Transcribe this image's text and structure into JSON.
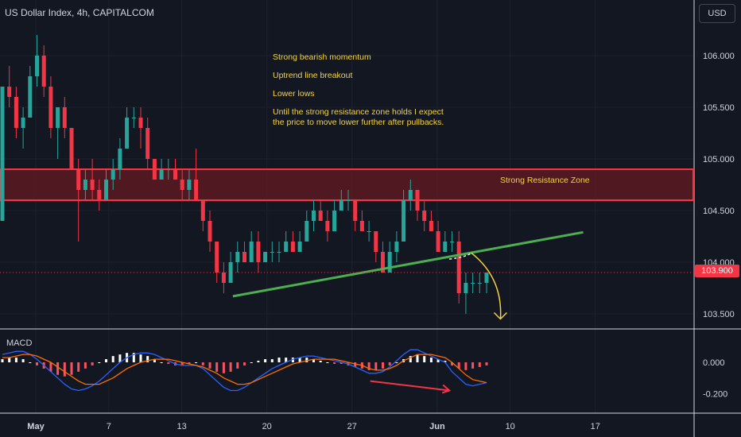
{
  "header": {
    "symbol_title": "US Dollar Index, 4h, CAPITALCOM",
    "currency_button": "USD"
  },
  "annotations": {
    "notes": [
      "Strong bearish momentum",
      "Uptrend line breakout",
      "Lower lows",
      "Until the strong resistance zone holds I expect",
      "the price to move lower further after pullbacks."
    ],
    "resistance_zone_label": "Strong Resistance Zone"
  },
  "indicator": {
    "name": "MACD"
  },
  "colors": {
    "background": "#131722",
    "up": "#26a69a",
    "down": "#f23645",
    "zone_fill": "#5c1a22",
    "zone_border": "#f23645",
    "trendline": "#4caf50",
    "annotation_text": "#f5d33f",
    "macd_line": "#2962ff",
    "signal_line": "#ff6d00",
    "hist_pos": "#ffffff",
    "hist_neg": "#f7525f"
  },
  "chart_data": {
    "type": "candlestick",
    "title": "US Dollar Index, 4h, CAPITALCOM",
    "price_axis": {
      "ticks": [
        106.0,
        105.5,
        105.0,
        104.5,
        104.0,
        103.5
      ],
      "labels": [
        "106.000",
        "105.500",
        "105.000",
        "104.500",
        "104.000",
        "103.500"
      ],
      "range": [
        103.3,
        106.3
      ]
    },
    "time_axis": {
      "labels": [
        "May",
        "7",
        "13",
        "20",
        "27",
        "Jun",
        "10",
        "17"
      ],
      "positions_day": [
        1,
        7,
        13,
        20,
        27,
        34,
        40,
        47
      ]
    },
    "last_price": 103.9,
    "last_price_label": "103.900",
    "resistance_zone": [
      104.6,
      104.9
    ],
    "trendline": {
      "from": [
        17.2,
        103.67
      ],
      "to": [
        46.0,
        104.29
      ]
    },
    "projection": {
      "from": [
        35.0,
        104.03
      ],
      "via": [
        37.0,
        103.84
      ],
      "to": [
        36.8,
        104.09
      ],
      "target": [
        39.2,
        103.45
      ]
    },
    "candles": [
      [
        104.4,
        105.7,
        104.4,
        105.7
      ],
      [
        105.7,
        105.9,
        105.5,
        105.6
      ],
      [
        105.6,
        105.7,
        105.2,
        105.3
      ],
      [
        105.3,
        105.5,
        105.1,
        105.4
      ],
      [
        105.4,
        105.9,
        105.4,
        105.8
      ],
      [
        105.8,
        106.2,
        105.7,
        106.0
      ],
      [
        106.0,
        106.1,
        105.6,
        105.7
      ],
      [
        105.7,
        105.8,
        105.2,
        105.3
      ],
      [
        105.3,
        105.5,
        105.0,
        105.5
      ],
      [
        105.5,
        105.6,
        105.2,
        105.3
      ],
      [
        105.3,
        105.3,
        104.9,
        104.9
      ],
      [
        104.9,
        105.0,
        104.2,
        104.7
      ],
      [
        104.7,
        104.9,
        104.6,
        104.8
      ],
      [
        104.8,
        105.0,
        104.6,
        104.7
      ],
      [
        104.7,
        104.8,
        104.5,
        104.6
      ],
      [
        104.6,
        104.9,
        104.6,
        104.8
      ],
      [
        104.8,
        105.0,
        104.7,
        104.9
      ],
      [
        104.9,
        105.2,
        104.8,
        105.1
      ],
      [
        105.1,
        105.5,
        105.1,
        105.4
      ],
      [
        105.4,
        105.5,
        105.3,
        105.4
      ],
      [
        105.4,
        105.5,
        105.1,
        105.3
      ],
      [
        105.3,
        105.4,
        104.9,
        105.0
      ],
      [
        105.0,
        105.0,
        104.8,
        104.8
      ],
      [
        104.8,
        105.0,
        104.8,
        104.9
      ],
      [
        104.9,
        105.0,
        104.8,
        104.9
      ],
      [
        104.9,
        105.0,
        104.8,
        104.8
      ],
      [
        104.8,
        104.9,
        104.6,
        104.7
      ],
      [
        104.7,
        104.9,
        104.6,
        104.8
      ],
      [
        104.8,
        105.1,
        104.6,
        104.6
      ],
      [
        104.6,
        104.6,
        104.3,
        104.4
      ],
      [
        104.4,
        104.5,
        104.1,
        104.2
      ],
      [
        104.2,
        104.2,
        103.8,
        103.9
      ],
      [
        103.9,
        104.0,
        103.7,
        103.8
      ],
      [
        103.8,
        104.1,
        103.8,
        104.0
      ],
      [
        104.0,
        104.2,
        103.9,
        104.1
      ],
      [
        104.1,
        104.2,
        104.0,
        104.0
      ],
      [
        104.0,
        104.3,
        104.0,
        104.2
      ],
      [
        104.2,
        104.3,
        103.9,
        104.0
      ],
      [
        104.0,
        104.1,
        104.0,
        104.1
      ],
      [
        104.1,
        104.2,
        104.0,
        104.1
      ],
      [
        104.1,
        104.2,
        104.0,
        104.1
      ],
      [
        104.1,
        104.3,
        104.1,
        104.2
      ],
      [
        104.2,
        104.3,
        104.1,
        104.1
      ],
      [
        104.1,
        104.3,
        104.1,
        104.2
      ],
      [
        104.2,
        104.5,
        104.2,
        104.4
      ],
      [
        104.4,
        104.6,
        104.3,
        104.5
      ],
      [
        104.5,
        104.6,
        104.4,
        104.4
      ],
      [
        104.4,
        104.5,
        104.2,
        104.3
      ],
      [
        104.3,
        104.6,
        104.3,
        104.5
      ],
      [
        104.5,
        104.7,
        104.5,
        104.6
      ],
      [
        104.6,
        104.7,
        104.5,
        104.6
      ],
      [
        104.6,
        104.6,
        104.3,
        104.4
      ],
      [
        104.4,
        104.5,
        104.3,
        104.3
      ],
      [
        104.3,
        104.4,
        104.2,
        104.3
      ],
      [
        104.3,
        104.3,
        104.0,
        104.1
      ],
      [
        104.1,
        104.2,
        103.9,
        103.9
      ],
      [
        103.9,
        104.2,
        103.9,
        104.1
      ],
      [
        104.1,
        104.3,
        104.0,
        104.2
      ],
      [
        104.2,
        104.7,
        104.2,
        104.6
      ],
      [
        104.6,
        104.8,
        104.5,
        104.7
      ],
      [
        104.7,
        104.7,
        104.4,
        104.5
      ],
      [
        104.5,
        104.6,
        104.3,
        104.4
      ],
      [
        104.4,
        104.5,
        104.3,
        104.3
      ],
      [
        104.3,
        104.4,
        104.1,
        104.1
      ],
      [
        104.1,
        104.3,
        104.1,
        104.2
      ],
      [
        104.2,
        104.3,
        104.1,
        104.2
      ],
      [
        104.2,
        104.3,
        103.6,
        103.7
      ],
      [
        103.7,
        103.9,
        103.5,
        103.8
      ],
      [
        103.8,
        103.9,
        103.7,
        103.8
      ],
      [
        103.8,
        103.9,
        103.7,
        103.8
      ],
      [
        103.8,
        103.9,
        103.7,
        103.9
      ]
    ],
    "macd": {
      "axis_ticks": [
        0.0,
        -0.2
      ],
      "axis_labels": [
        "0.000",
        "-0.200"
      ],
      "range": [
        -0.25,
        0.12
      ],
      "histogram": [
        0.02,
        0.03,
        0.03,
        0.02,
        0.0,
        -0.02,
        -0.04,
        -0.06,
        -0.08,
        -0.09,
        -0.08,
        -0.06,
        -0.04,
        -0.02,
        0.0,
        0.02,
        0.04,
        0.05,
        0.06,
        0.06,
        0.05,
        0.04,
        0.02,
        0.0,
        -0.01,
        -0.02,
        -0.02,
        -0.01,
        0.0,
        -0.02,
        -0.04,
        -0.06,
        -0.07,
        -0.06,
        -0.04,
        -0.02,
        0.0,
        0.01,
        0.02,
        0.02,
        0.03,
        0.03,
        0.03,
        0.03,
        0.03,
        0.02,
        0.01,
        0.0,
        -0.01,
        -0.01,
        -0.02,
        -0.03,
        -0.04,
        -0.05,
        -0.05,
        -0.04,
        -0.02,
        0.0,
        0.02,
        0.04,
        0.05,
        0.04,
        0.03,
        0.02,
        0.01,
        -0.02,
        -0.04,
        -0.05,
        -0.04,
        -0.03,
        -0.02
      ],
      "macd_line": [
        0.05,
        0.06,
        0.07,
        0.07,
        0.05,
        0.02,
        -0.02,
        -0.06,
        -0.1,
        -0.14,
        -0.17,
        -0.18,
        -0.17,
        -0.15,
        -0.12,
        -0.08,
        -0.04,
        0.0,
        0.03,
        0.05,
        0.06,
        0.06,
        0.05,
        0.03,
        0.01,
        -0.01,
        -0.02,
        -0.02,
        -0.02,
        -0.04,
        -0.08,
        -0.12,
        -0.16,
        -0.18,
        -0.18,
        -0.16,
        -0.13,
        -0.1,
        -0.07,
        -0.04,
        -0.02,
        0.0,
        0.02,
        0.03,
        0.04,
        0.04,
        0.03,
        0.02,
        0.01,
        0.0,
        -0.01,
        -0.03,
        -0.05,
        -0.07,
        -0.07,
        -0.06,
        -0.03,
        0.01,
        0.05,
        0.08,
        0.08,
        0.06,
        0.04,
        0.02,
        0.0,
        -0.06,
        -0.1,
        -0.14,
        -0.15,
        -0.14,
        -0.13
      ],
      "signal_line": [
        0.03,
        0.03,
        0.04,
        0.05,
        0.05,
        0.04,
        0.02,
        0.0,
        -0.03,
        -0.06,
        -0.09,
        -0.12,
        -0.14,
        -0.14,
        -0.14,
        -0.12,
        -0.1,
        -0.07,
        -0.04,
        -0.02,
        0.0,
        0.01,
        0.02,
        0.02,
        0.02,
        0.01,
        0.0,
        -0.01,
        -0.02,
        -0.03,
        -0.05,
        -0.07,
        -0.1,
        -0.12,
        -0.14,
        -0.14,
        -0.13,
        -0.11,
        -0.09,
        -0.07,
        -0.05,
        -0.03,
        -0.01,
        0.0,
        0.01,
        0.02,
        0.02,
        0.02,
        0.02,
        0.01,
        0.0,
        -0.01,
        -0.02,
        -0.04,
        -0.05,
        -0.05,
        -0.04,
        -0.02,
        0.01,
        0.03,
        0.05,
        0.05,
        0.05,
        0.04,
        0.03,
        0.0,
        -0.04,
        -0.08,
        -0.11,
        -0.12,
        -0.13
      ]
    },
    "macd_divergence_arrow": {
      "from": [
        28.5,
        -0.12
      ],
      "to": [
        35.0,
        -0.18
      ]
    }
  }
}
